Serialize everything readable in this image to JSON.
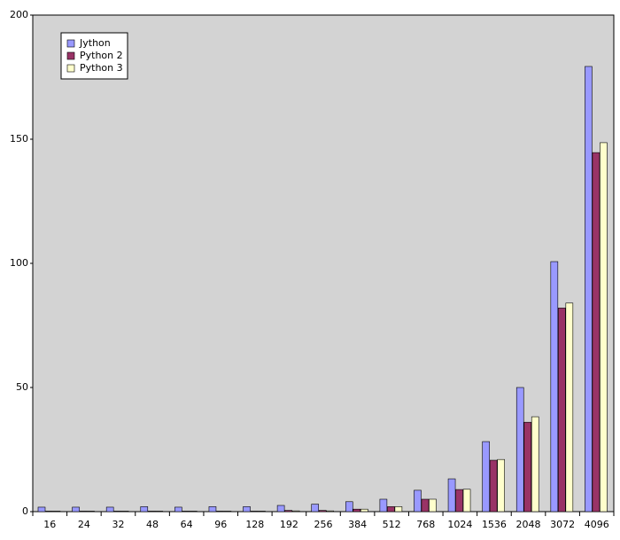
{
  "chart_data": {
    "type": "bar",
    "categories": [
      "16",
      "24",
      "32",
      "48",
      "64",
      "96",
      "128",
      "192",
      "256",
      "384",
      "512",
      "768",
      "1024",
      "1536",
      "2048",
      "3072",
      "4096"
    ],
    "series": [
      {
        "name": "Jython",
        "color": "#9999ff",
        "values": [
          1.8,
          1.8,
          1.8,
          2,
          1.8,
          2,
          2,
          2.5,
          3,
          4,
          5,
          8.6,
          13.2,
          28.2,
          50,
          100.7,
          179.3
        ]
      },
      {
        "name": "Python 2",
        "color": "#993366",
        "values": [
          0.2,
          0.2,
          0.2,
          0.2,
          0.2,
          0.2,
          0.2,
          0.5,
          0.5,
          1,
          2,
          5,
          8.9,
          20.7,
          36,
          82,
          144.6
        ]
      },
      {
        "name": "Python 3",
        "color": "#ffffcc",
        "values": [
          0.2,
          0.2,
          0.2,
          0.2,
          0.2,
          0.2,
          0.2,
          0.3,
          0.3,
          1,
          2,
          5,
          9,
          21,
          38.2,
          84,
          148.6
        ]
      }
    ],
    "ylim": [
      0,
      200
    ],
    "yticks": [
      0,
      50,
      100,
      150,
      200
    ],
    "grid": false,
    "legend": "top-left"
  }
}
